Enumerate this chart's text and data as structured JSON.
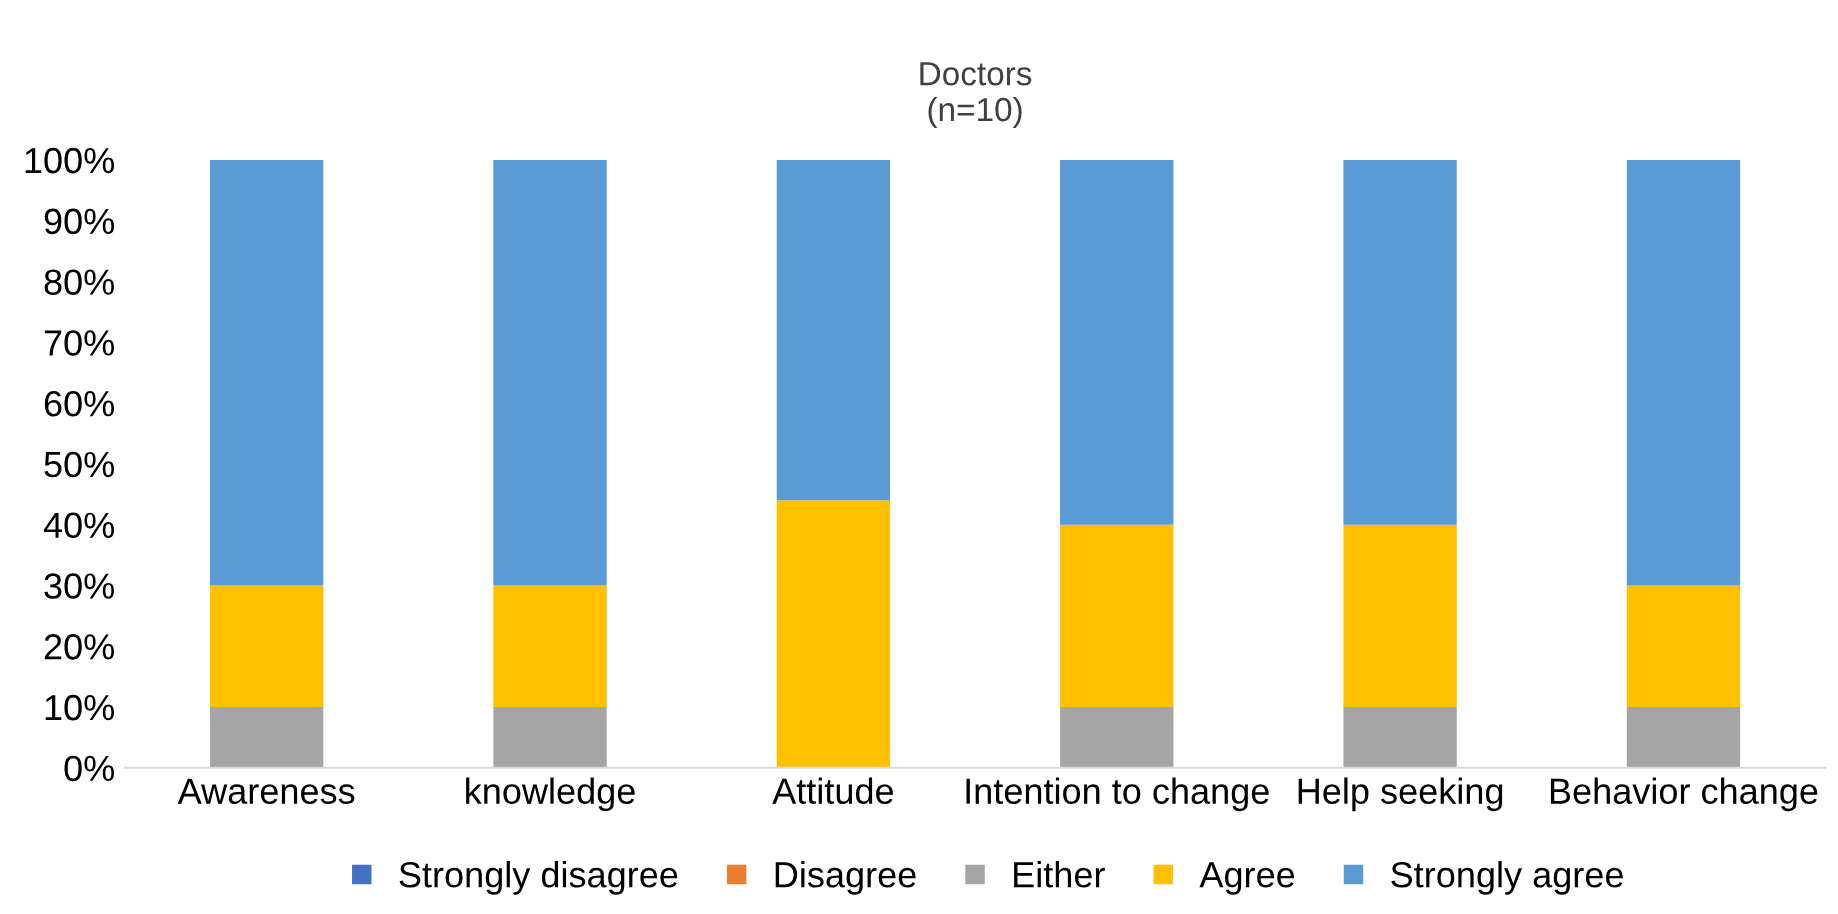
{
  "chart_data": {
    "type": "bar",
    "stacked": true,
    "title": "Doctors\n(n=10)",
    "categories": [
      "Awareness",
      "knowledge",
      "Attitude",
      "Intention to change",
      "Help seeking",
      "Behavior change"
    ],
    "series": [
      {
        "name": "Strongly disagree",
        "color": "#4472c4",
        "values": [
          0,
          0,
          0,
          0,
          0,
          0
        ]
      },
      {
        "name": "Disagree",
        "color": "#ed7d31",
        "values": [
          0,
          0,
          0,
          0,
          0,
          0
        ]
      },
      {
        "name": "Either",
        "color": "#a5a5a5",
        "values": [
          10,
          10,
          0,
          10,
          10,
          10
        ]
      },
      {
        "name": "Agree",
        "color": "#ffc000",
        "values": [
          20,
          20,
          44,
          30,
          30,
          20
        ]
      },
      {
        "name": "Strongly agree",
        "color": "#5b9bd5",
        "values": [
          70,
          70,
          56,
          60,
          60,
          70
        ]
      }
    ],
    "ylim": [
      0,
      100
    ],
    "yticks": [
      {
        "value": 0,
        "label": "0%"
      },
      {
        "value": 10,
        "label": "10%"
      },
      {
        "value": 20,
        "label": "20%"
      },
      {
        "value": 30,
        "label": "30%"
      },
      {
        "value": 40,
        "label": "40%"
      },
      {
        "value": 50,
        "label": "50%"
      },
      {
        "value": 60,
        "label": "60%"
      },
      {
        "value": 70,
        "label": "70%"
      },
      {
        "value": 80,
        "label": "80%"
      },
      {
        "value": 90,
        "label": "90%"
      },
      {
        "value": 100,
        "label": "100%"
      }
    ],
    "grid": false,
    "legend": "bottom"
  }
}
